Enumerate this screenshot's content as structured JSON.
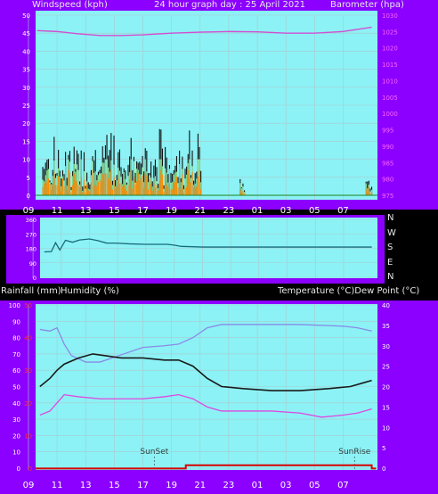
{
  "labels": {
    "windspeed": "Windspeed (kph)",
    "header": "24 hour graph day : 25 April 2021",
    "barometer": "Barometer (hpa)",
    "rainfall": "Rainfall (mm)",
    "humidity": "Humidity (%)",
    "temperature": "Temperature (°C)Dew Point (°C)",
    "sunset": "SunSet",
    "sunrise": "SunRise"
  },
  "compass": [
    "N",
    "W",
    "S",
    "E",
    "N"
  ],
  "colors": {
    "panel_bg": "#8cf2f5",
    "frame": "#8b00ff",
    "wind_avg": "#ff8c00",
    "wind_mid": "#8ce08c",
    "wind_gust": "#101010",
    "barometer": "#d24fd2",
    "direction": "#1a6a7a",
    "humidity": "#8a8ae6",
    "temperature": "#1a1a1a",
    "dewpoint": "#e048e0",
    "rain": "#d80000"
  },
  "chart_data": [
    {
      "type": "line",
      "title": "24 hour graph day : 25 April 2021",
      "xlabel": "",
      "x_ticks": [
        "11",
        "13",
        "15",
        "17",
        "19",
        "21",
        "23",
        "01",
        "03",
        "05",
        "07",
        "09"
      ],
      "xlim": [
        9.5,
        33.4
      ],
      "ylabel": "Windspeed (kph)",
      "ylim": [
        0,
        50
      ],
      "yticks": [
        0,
        5,
        10,
        15,
        20,
        25,
        30,
        35,
        40,
        45,
        50
      ],
      "y2label": "Barometer (hpa)",
      "y2lim": [
        975,
        1030
      ],
      "y2ticks": [
        975,
        980,
        985,
        990,
        995,
        1000,
        1005,
        1010,
        1015,
        1020,
        1025,
        1030
      ],
      "series": [
        {
          "name": "Windspeed (kph)",
          "axis": "left",
          "kind": "wind",
          "segments": [
            [
              10.0,
              21.1
            ],
            [
              23.8,
              24.1
            ],
            [
              32.6,
              33.0
            ]
          ],
          "gust_min": 2,
          "gust_max": 14,
          "gust_peak": 19,
          "avg_max": 7,
          "mid_max": 10
        },
        {
          "name": "Barometer (hpa)",
          "axis": "right",
          "x": [
            9.6,
            11.0,
            12.5,
            14.0,
            15.5,
            17.0,
            19.0,
            21.0,
            23.0,
            25.0,
            27.0,
            29.0,
            31.0,
            33.0
          ],
          "y": [
            1025.3,
            1025.0,
            1024.3,
            1023.8,
            1023.8,
            1024.0,
            1024.5,
            1024.8,
            1025.0,
            1024.9,
            1024.5,
            1024.5,
            1025.0,
            1026.3
          ]
        }
      ]
    },
    {
      "type": "line",
      "xlim": [
        9.5,
        33.4
      ],
      "ylabel": "",
      "ylim": [
        0,
        360
      ],
      "yticks": [
        0,
        90,
        180,
        270,
        360
      ],
      "right_labels": [
        "N",
        "W",
        "S",
        "E",
        "N"
      ],
      "series": [
        {
          "name": "Wind direction",
          "x": [
            9.8,
            10.3,
            10.6,
            10.9,
            11.3,
            11.8,
            12.3,
            13.0,
            13.6,
            14.2,
            15.0,
            15.8,
            17.0,
            18.5,
            19.0,
            19.5,
            20.3,
            21.0,
            22.0,
            24.0,
            28.0,
            33.0
          ],
          "y": [
            158,
            160,
            215,
            170,
            230,
            218,
            232,
            238,
            228,
            213,
            212,
            208,
            205,
            205,
            200,
            192,
            190,
            188,
            188,
            188,
            188,
            188
          ]
        }
      ]
    },
    {
      "type": "line",
      "xlim": [
        9.5,
        33.4
      ],
      "x_ticks": [
        "11",
        "13",
        "15",
        "17",
        "19",
        "21",
        "23",
        "01",
        "03",
        "05",
        "07",
        "09"
      ],
      "ylabel": "Rainfall (mm)  Humidity (%)",
      "ylim": [
        0,
        100
      ],
      "yticks": [
        0,
        10,
        20,
        30,
        40,
        50,
        60,
        70,
        80,
        90,
        100
      ],
      "rain_ticks": [
        0,
        10,
        20,
        30,
        40,
        50
      ],
      "y2label": "Temperature (°C)Dew Point (°C)",
      "y2lim": [
        0,
        40
      ],
      "y2ticks": [
        0,
        5,
        10,
        15,
        20,
        25,
        30,
        35,
        40
      ],
      "annotations": [
        {
          "text": "SunSet",
          "x": 17.8
        },
        {
          "text": "SunRise",
          "x": 31.8
        }
      ],
      "series": [
        {
          "name": "Humidity (%)",
          "axis": "left",
          "x": [
            9.8,
            10.5,
            11.0,
            11.5,
            12.0,
            12.5,
            13.0,
            14.0,
            15.0,
            16.0,
            17.0,
            18.5,
            19.5,
            20.5,
            21.5,
            22.5,
            25.0,
            28.0,
            31.0,
            32.0,
            33.0
          ],
          "y": [
            85,
            84,
            86,
            76,
            69,
            67,
            65,
            65,
            68,
            71,
            74,
            75,
            76,
            80,
            86,
            88,
            88,
            88,
            87,
            86,
            84
          ]
        },
        {
          "name": "Temperature (°C)",
          "axis": "right",
          "x": [
            9.8,
            10.5,
            11.0,
            11.5,
            12.5,
            13.5,
            14.5,
            15.5,
            17.0,
            18.5,
            19.5,
            20.5,
            21.5,
            22.5,
            24.0,
            26.0,
            28.0,
            30.0,
            31.5,
            32.5,
            33.0
          ],
          "y": [
            20,
            22,
            24,
            25.5,
            27,
            28,
            27.5,
            27,
            27,
            26.5,
            26.5,
            25,
            22,
            20,
            19.5,
            19,
            19,
            19.5,
            20,
            21,
            21.5
          ]
        },
        {
          "name": "Dew Point (°C)",
          "axis": "right",
          "x": [
            9.8,
            10.5,
            11.0,
            11.5,
            12.5,
            14.0,
            15.5,
            17.0,
            18.5,
            19.5,
            20.5,
            21.5,
            22.5,
            24.0,
            26.0,
            28.0,
            29.5,
            31.0,
            32.0,
            33.0
          ],
          "y": [
            13,
            14,
            16,
            18,
            17.5,
            17,
            17,
            17,
            17.5,
            18,
            17,
            15,
            14,
            14,
            14,
            13.5,
            12.5,
            13,
            13.5,
            14.5
          ]
        },
        {
          "name": "Rainfall (mm)",
          "axis": "rain",
          "x": [
            9.5,
            20.0,
            20.0,
            33.0,
            33.0,
            33.3
          ],
          "y": [
            0,
            0,
            1,
            1,
            0,
            0
          ]
        }
      ]
    }
  ]
}
